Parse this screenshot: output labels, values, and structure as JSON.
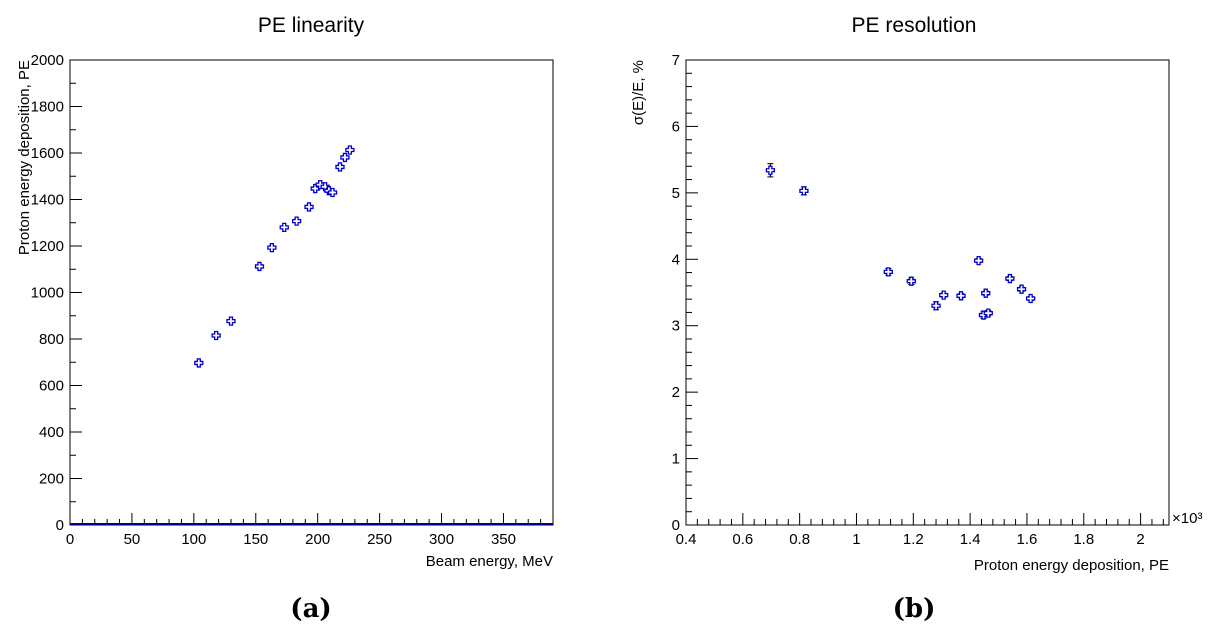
{
  "chart_data": [
    {
      "type": "scatter",
      "title": "PE linearity",
      "xlabel": "Beam energy, MeV",
      "ylabel": "Proton energy deposition, PE",
      "xlim": [
        0,
        390
      ],
      "ylim": [
        0,
        2000
      ],
      "x_ticks": [
        0,
        50,
        100,
        150,
        200,
        250,
        300,
        350
      ],
      "x_tick_labels": [
        "0",
        "50",
        "100",
        "150",
        "200",
        "250",
        "300",
        "350"
      ],
      "y_ticks": [
        0,
        200,
        400,
        600,
        800,
        1000,
        1200,
        1400,
        1600,
        1800,
        2000
      ],
      "y_tick_labels": [
        "0",
        "200",
        "400",
        "600",
        "800",
        "1000",
        "1200",
        "1400",
        "1600",
        "1800",
        "2000"
      ],
      "grid": false,
      "marker_color": "#0000cc",
      "points": [
        {
          "x": 104,
          "y": 697
        },
        {
          "x": 118,
          "y": 815
        },
        {
          "x": 130,
          "y": 877
        },
        {
          "x": 153,
          "y": 1112
        },
        {
          "x": 163,
          "y": 1193
        },
        {
          "x": 173,
          "y": 1280
        },
        {
          "x": 183,
          "y": 1307
        },
        {
          "x": 193,
          "y": 1368
        },
        {
          "x": 198,
          "y": 1447
        },
        {
          "x": 202,
          "y": 1464
        },
        {
          "x": 206,
          "y": 1455
        },
        {
          "x": 209,
          "y": 1438
        },
        {
          "x": 212,
          "y": 1430
        },
        {
          "x": 218,
          "y": 1540
        },
        {
          "x": 222,
          "y": 1581
        },
        {
          "x": 226,
          "y": 1613
        }
      ],
      "caption": "(a)"
    },
    {
      "type": "scatter",
      "title": "PE resolution",
      "xlabel": "Proton energy deposition, PE",
      "ylabel": "σ(E)/E, %",
      "x_exponent_label": "×10³",
      "xlim": [
        0.4,
        2.1
      ],
      "ylim": [
        0,
        7
      ],
      "x_ticks": [
        0.4,
        0.6,
        0.8,
        1.0,
        1.2,
        1.4,
        1.6,
        1.8,
        2.0
      ],
      "x_tick_labels": [
        "0.4",
        "0.6",
        "0.8",
        "1",
        "1.2",
        "1.4",
        "1.6",
        "1.8",
        "2"
      ],
      "y_ticks": [
        0,
        1,
        2,
        3,
        4,
        5,
        6,
        7
      ],
      "y_tick_labels": [
        "0",
        "1",
        "2",
        "3",
        "4",
        "5",
        "6",
        "7"
      ],
      "grid": false,
      "marker_color": "#0000cc",
      "points": [
        {
          "x": 0.697,
          "y": 5.34,
          "err": 0.1
        },
        {
          "x": 0.815,
          "y": 5.03,
          "err": 0.06
        },
        {
          "x": 1.112,
          "y": 3.81,
          "err": 0.05
        },
        {
          "x": 1.193,
          "y": 3.67,
          "err": 0.05
        },
        {
          "x": 1.28,
          "y": 3.3,
          "err": 0.06
        },
        {
          "x": 1.307,
          "y": 3.46,
          "err": 0.03
        },
        {
          "x": 1.368,
          "y": 3.45,
          "err": 0.03
        },
        {
          "x": 1.43,
          "y": 3.98,
          "err": 0.03
        },
        {
          "x": 1.447,
          "y": 3.16,
          "err": 0.05
        },
        {
          "x": 1.455,
          "y": 3.49,
          "err": 0.03
        },
        {
          "x": 1.464,
          "y": 3.19,
          "err": 0.04
        },
        {
          "x": 1.54,
          "y": 3.71,
          "err": 0.03
        },
        {
          "x": 1.581,
          "y": 3.55,
          "err": 0.03
        },
        {
          "x": 1.613,
          "y": 3.41,
          "err": 0.03
        }
      ],
      "caption": "(b)"
    }
  ]
}
